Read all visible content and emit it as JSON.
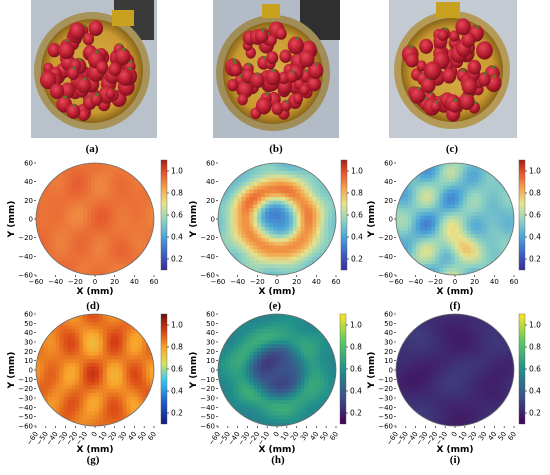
{
  "photos": [
    {
      "label": "(a)"
    },
    {
      "label": "(b)"
    },
    {
      "label": "(c)"
    }
  ],
  "chart_data": [
    {
      "type": "heatmap",
      "panel_label": "(d)",
      "xlabel": "X (mm)",
      "ylabel": "Y (mm)",
      "xlim": [
        -60,
        60
      ],
      "ylim": [
        -60,
        60
      ],
      "x_ticks": [
        "−60",
        "−40",
        "−20",
        "0",
        "20",
        "40",
        "60"
      ],
      "y_ticks": [
        "−60",
        "−40",
        "−20",
        "0",
        "20",
        "40",
        "60"
      ],
      "colorbar": {
        "colormap": "rainbow",
        "range": [
          0.1,
          1.1
        ],
        "ticks": [
          "0.2",
          "0.4",
          "0.6",
          "0.8",
          "1.0"
        ]
      },
      "pattern": "uniform",
      "values": {
        "level": 0.93,
        "variation": 0.03
      }
    },
    {
      "type": "heatmap",
      "panel_label": "(e)",
      "xlabel": "X (mm)",
      "ylabel": "Y (mm)",
      "xlim": [
        -60,
        60
      ],
      "ylim": [
        -60,
        60
      ],
      "x_ticks": [
        "−60",
        "−40",
        "−20",
        "0",
        "20",
        "40",
        "60"
      ],
      "y_ticks": [
        "−60",
        "−40",
        "−20",
        "0",
        "20",
        "40",
        "60"
      ],
      "colorbar": {
        "colormap": "rainbow",
        "range": [
          0.1,
          1.1
        ],
        "ticks": [
          "0.2",
          "0.4",
          "0.6",
          "0.8",
          "1.0"
        ]
      },
      "pattern": "ring",
      "values": {
        "center": 0.3,
        "ring": 0.9,
        "ring_radius_mm": 32,
        "edge": 0.5
      }
    },
    {
      "type": "heatmap",
      "panel_label": "(f)",
      "xlabel": "X (mm)",
      "ylabel": "Y (mm)",
      "xlim": [
        -60,
        60
      ],
      "ylim": [
        -60,
        60
      ],
      "x_ticks": [
        "−60",
        "−40",
        "−20",
        "0",
        "20",
        "40",
        "60"
      ],
      "y_ticks": [
        "−60",
        "−40",
        "−20",
        "0",
        "20",
        "40",
        "60"
      ],
      "colorbar": {
        "colormap": "rainbow",
        "range": [
          0.1,
          1.1
        ],
        "ticks": [
          "0.2",
          "0.4",
          "0.6",
          "0.8",
          "1.0"
        ]
      },
      "pattern": "patchy",
      "values": {
        "level": 0.5,
        "variation": 0.12,
        "hot_spot_mm": [
          5,
          -30
        ],
        "hot_spot_level": 0.82
      }
    },
    {
      "type": "heatmap",
      "panel_label": "(g)",
      "xlabel": "X (mm)",
      "ylabel": "Y (mm)",
      "xlim": [
        -60,
        60
      ],
      "ylim": [
        -60,
        60
      ],
      "x_ticks": [
        "−60",
        "−50",
        "−40",
        "−30",
        "−20",
        "−10",
        "0",
        "10",
        "20",
        "30",
        "40",
        "50",
        "60"
      ],
      "y_ticks": [
        "−60",
        "−50",
        "−40",
        "−30",
        "−20",
        "−10",
        "0",
        "10",
        "20",
        "30",
        "40",
        "50",
        "60"
      ],
      "colorbar": {
        "colormap": "jet",
        "range": [
          0.1,
          1.1
        ],
        "ticks": [
          "0.2",
          "0.4",
          "0.6",
          "0.8",
          "1.0"
        ]
      },
      "pattern": "uniform",
      "values": {
        "level": 0.86,
        "variation": 0.06
      }
    },
    {
      "type": "heatmap",
      "panel_label": "(h)",
      "xlabel": "X (mm)",
      "ylabel": "Y (mm)",
      "xlim": [
        -60,
        60
      ],
      "ylim": [
        -60,
        60
      ],
      "x_ticks": [
        "−60",
        "−50",
        "−40",
        "−30",
        "−20",
        "−10",
        "0",
        "10",
        "20",
        "30",
        "40",
        "50",
        "60"
      ],
      "y_ticks": [
        "−60",
        "−50",
        "−40",
        "−30",
        "−20",
        "−10",
        "0",
        "10",
        "20",
        "30",
        "40",
        "50",
        "60"
      ],
      "colorbar": {
        "colormap": "viridis",
        "range": [
          0.1,
          1.1
        ],
        "ticks": [
          "0.2",
          "0.4",
          "0.6",
          "0.8",
          "1.0"
        ]
      },
      "pattern": "ring",
      "values": {
        "center": 0.3,
        "ring": 0.68,
        "ring_radius_mm": 38,
        "edge": 0.55
      }
    },
    {
      "type": "heatmap",
      "panel_label": "(i)",
      "xlabel": "X (mm)",
      "ylabel": "Y (mm)",
      "xlim": [
        -60,
        60
      ],
      "ylim": [
        -60,
        60
      ],
      "x_ticks": [
        "−60",
        "−50",
        "−40",
        "−30",
        "−20",
        "−10",
        "0",
        "10",
        "20",
        "30",
        "40",
        "50",
        "60"
      ],
      "y_ticks": [
        "−60",
        "−50",
        "−40",
        "−30",
        "−20",
        "−10",
        "0",
        "10",
        "20",
        "30",
        "40",
        "50",
        "60"
      ],
      "colorbar": {
        "colormap": "viridis",
        "range": [
          0.1,
          1.1
        ],
        "ticks": [
          "0.2",
          "0.4",
          "0.6",
          "0.8",
          "1.0"
        ]
      },
      "pattern": "uniform",
      "values": {
        "level": 0.23,
        "variation": 0.04
      }
    }
  ]
}
